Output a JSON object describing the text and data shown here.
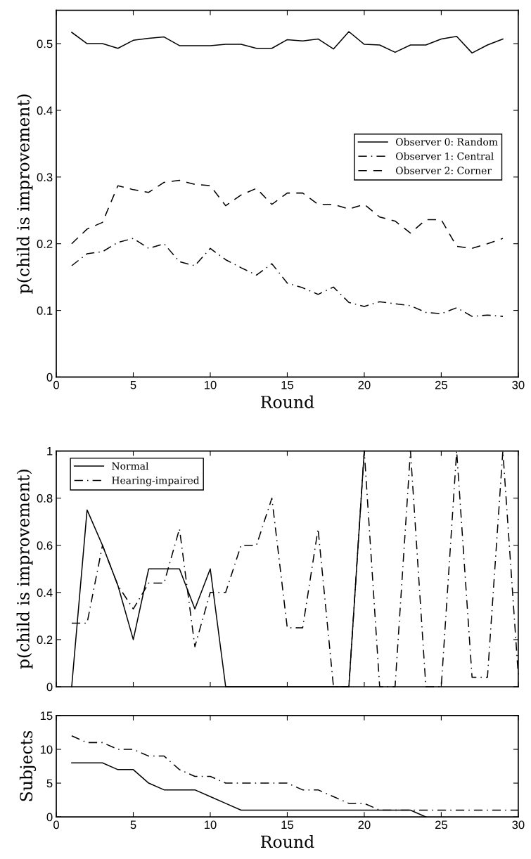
{
  "chart_data": [
    {
      "type": "line",
      "xlabel": "Round",
      "ylabel": "p(child is improvement)",
      "xlim": [
        0,
        30
      ],
      "xticks": [
        0,
        5,
        10,
        15,
        20,
        25,
        30
      ],
      "ylim": [
        0,
        0.55
      ],
      "yticks": [
        0,
        0.1,
        0.2,
        0.3,
        0.4,
        0.5
      ],
      "legend": "right",
      "grid": false,
      "x": [
        1,
        2,
        3,
        4,
        5,
        6,
        7,
        8,
        9,
        10,
        11,
        12,
        13,
        14,
        15,
        16,
        17,
        18,
        19,
        20,
        21,
        22,
        23,
        24,
        25,
        26,
        27,
        28,
        29
      ],
      "series": [
        {
          "name": "Observer 0: Random",
          "color": "#000000",
          "line_style": "solid",
          "values": [
            0.517,
            0.5,
            0.5,
            0.493,
            0.505,
            0.508,
            0.51,
            0.497,
            0.497,
            0.497,
            0.499,
            0.499,
            0.493,
            0.493,
            0.506,
            0.504,
            0.507,
            0.492,
            0.518,
            0.499,
            0.498,
            0.487,
            0.498,
            0.498,
            0.507,
            0.511,
            0.486,
            0.498,
            0.507
          ]
        },
        {
          "name": "Observer 1: Central",
          "color": "#000000",
          "line_style": "dashdot",
          "values": [
            0.167,
            0.185,
            0.188,
            0.202,
            0.208,
            0.193,
            0.2,
            0.173,
            0.167,
            0.193,
            0.176,
            0.164,
            0.153,
            0.17,
            0.141,
            0.134,
            0.124,
            0.135,
            0.112,
            0.106,
            0.113,
            0.11,
            0.107,
            0.097,
            0.095,
            0.104,
            0.091,
            0.093,
            0.091
          ]
        },
        {
          "name": "Observer 2: Corner",
          "color": "#000000",
          "line_style": "dashed",
          "values": [
            0.2,
            0.222,
            0.232,
            0.287,
            0.281,
            0.277,
            0.292,
            0.295,
            0.289,
            0.287,
            0.257,
            0.273,
            0.283,
            0.259,
            0.276,
            0.276,
            0.259,
            0.259,
            0.252,
            0.259,
            0.24,
            0.234,
            0.216,
            0.236,
            0.236,
            0.196,
            0.193,
            0.2,
            0.208
          ]
        }
      ]
    },
    {
      "type": "line",
      "ylabel": "p(child is improvement)",
      "xlim": [
        0,
        30
      ],
      "xticks": [
        0,
        5,
        10,
        15,
        20,
        25,
        30
      ],
      "ylim": [
        0,
        1
      ],
      "yticks": [
        0,
        0.2,
        0.4,
        0.6,
        0.8,
        1
      ],
      "tick_labels": "y",
      "legend": "top left",
      "grid": false,
      "x": [
        1,
        2,
        3,
        4,
        5,
        6,
        7,
        8,
        9,
        10,
        11,
        12,
        13,
        14,
        15,
        16,
        17,
        18,
        19,
        20,
        21,
        22,
        23,
        24,
        25,
        26,
        27,
        28,
        29,
        30
      ],
      "series": [
        {
          "name": "Normal",
          "color": "#000000",
          "line_style": "solid",
          "values": [
            0,
            0.75,
            0.6,
            0.43,
            0.2,
            0.5,
            0.5,
            0.5,
            0.33,
            0.5,
            0,
            0,
            0,
            0,
            0,
            0,
            0,
            0,
            0,
            1,
            null,
            null,
            null,
            null,
            null,
            null,
            null,
            null,
            null,
            null
          ]
        },
        {
          "name": "Hearing-impaired",
          "color": "#000000",
          "line_style": "dashdot",
          "values": [
            0.27,
            0.27,
            0.6,
            0.43,
            0.33,
            0.44,
            0.44,
            0.67,
            0.17,
            0.4,
            0.4,
            0.6,
            0.6,
            0.8,
            0.25,
            0.25,
            0.67,
            0,
            0,
            1,
            0,
            0,
            1,
            0,
            0,
            1,
            0.04,
            0.04,
            1,
            0.05
          ]
        }
      ]
    },
    {
      "type": "line",
      "xlabel": "Round",
      "ylabel": "Subjects",
      "xlim": [
        0,
        30
      ],
      "xticks": [
        0,
        5,
        10,
        15,
        20,
        25,
        30
      ],
      "ylim": [
        0,
        15
      ],
      "yticks": [
        0,
        5,
        10,
        15
      ],
      "grid": false,
      "x": [
        1,
        2,
        3,
        4,
        5,
        6,
        7,
        8,
        9,
        10,
        11,
        12,
        13,
        14,
        15,
        16,
        17,
        18,
        19,
        20,
        21,
        22,
        23,
        24,
        25,
        26,
        27,
        28,
        29,
        30
      ],
      "series": [
        {
          "color": "#000000",
          "line_style": "solid",
          "values": [
            8,
            8,
            8,
            7,
            7,
            5,
            4,
            4,
            4,
            3,
            2,
            1,
            1,
            1,
            1,
            1,
            1,
            1,
            1,
            1,
            1,
            1,
            1,
            0,
            null,
            null,
            null,
            null,
            null,
            null
          ]
        },
        {
          "color": "#000000",
          "line_style": "dashdot",
          "values": [
            12,
            11,
            11,
            10,
            10,
            9,
            9,
            7,
            6,
            6,
            5,
            5,
            5,
            5,
            5,
            4,
            4,
            3,
            2,
            2,
            1,
            1,
            1,
            1,
            1,
            1,
            1,
            1,
            1,
            1
          ]
        }
      ]
    }
  ]
}
